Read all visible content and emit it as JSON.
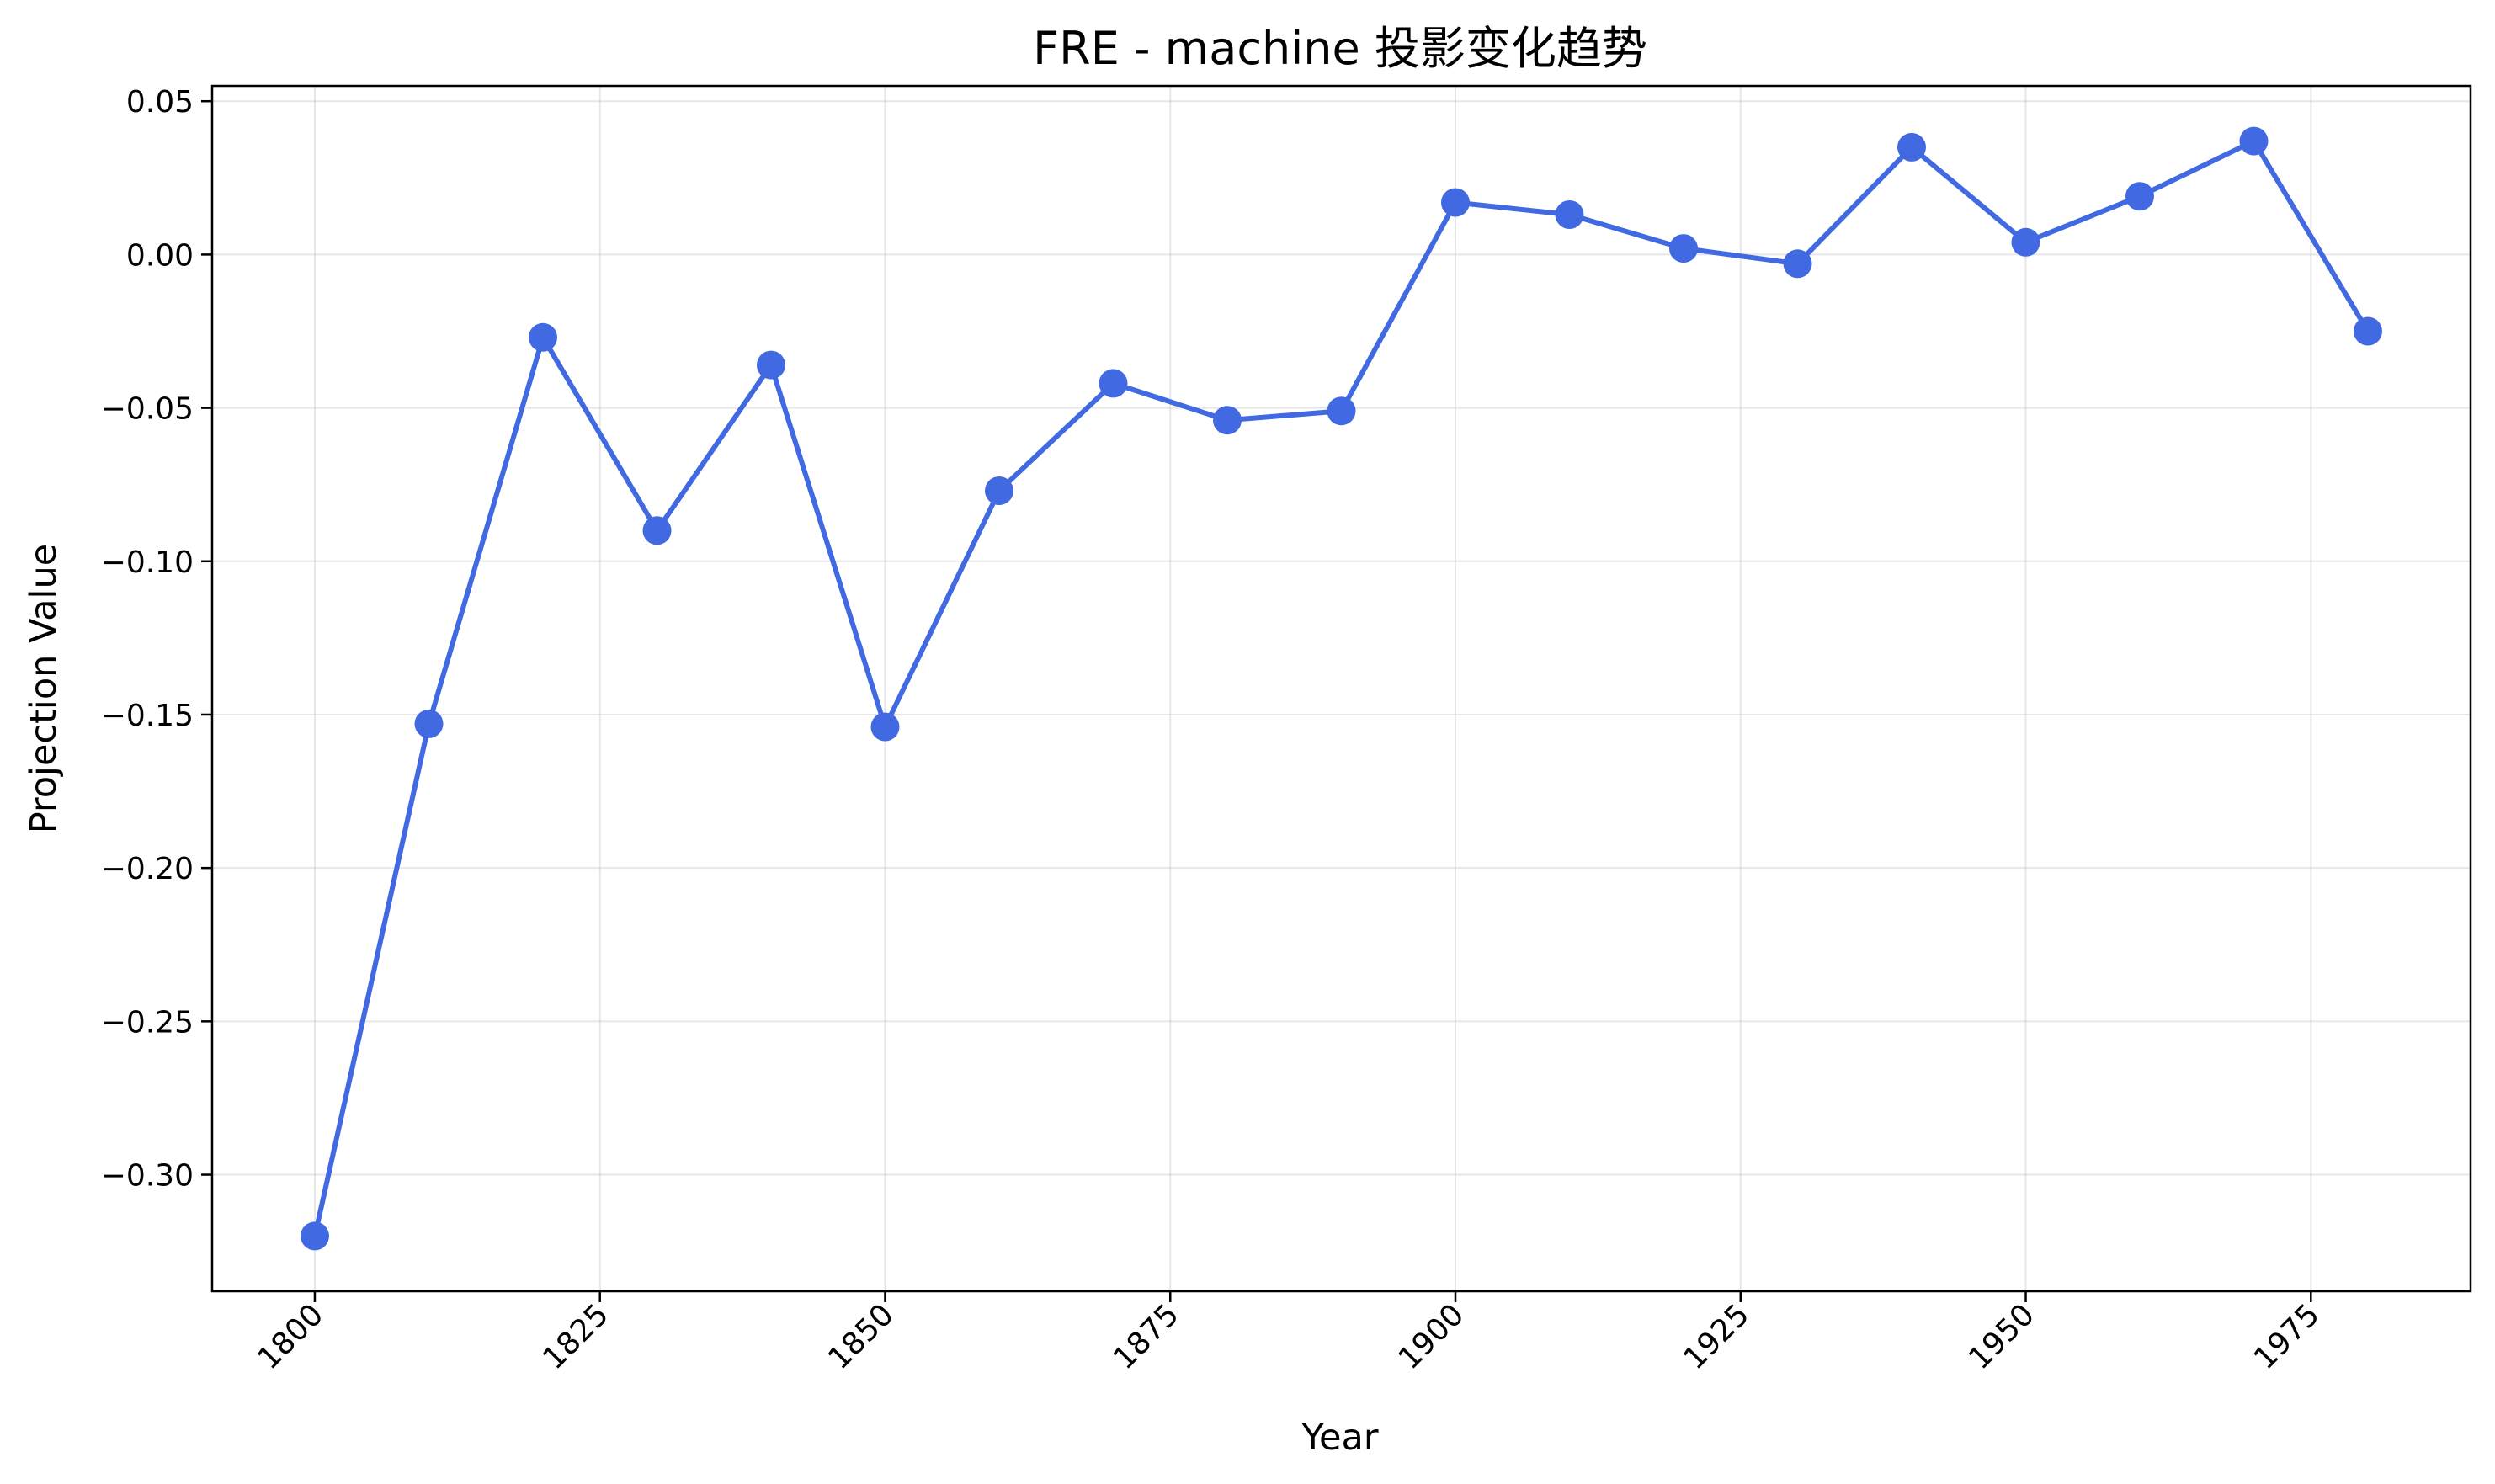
{
  "chart_data": {
    "type": "line",
    "title": "FRE - machine 投影变化趋势",
    "xlabel": "Year",
    "ylabel": "Projection Value",
    "xlim": [
      1791,
      1989
    ],
    "ylim": [
      -0.338,
      0.055
    ],
    "xticks": [
      1800,
      1825,
      1850,
      1875,
      1900,
      1925,
      1950,
      1975
    ],
    "xtick_labels": [
      "1800",
      "1825",
      "1850",
      "1875",
      "1900",
      "1925",
      "1950",
      "1975"
    ],
    "yticks": [
      0.05,
      0.0,
      -0.05,
      -0.1,
      -0.15,
      -0.2,
      -0.25,
      -0.3
    ],
    "ytick_labels": [
      "0.05",
      "0.00",
      "−0.05",
      "−0.10",
      "−0.15",
      "−0.20",
      "−0.25",
      "−0.30"
    ],
    "grid": true,
    "series": [
      {
        "color": "#4169e1",
        "marker": "circle",
        "x": [
          1800,
          1810,
          1820,
          1830,
          1840,
          1850,
          1860,
          1870,
          1880,
          1890,
          1900,
          1910,
          1920,
          1930,
          1940,
          1950,
          1960,
          1970,
          1980
        ],
        "y": [
          -0.32,
          -0.153,
          -0.027,
          -0.09,
          -0.036,
          -0.154,
          -0.077,
          -0.042,
          -0.054,
          -0.051,
          0.017,
          0.013,
          0.002,
          -0.003,
          0.035,
          0.004,
          0.019,
          0.037,
          -0.025
        ]
      }
    ]
  }
}
